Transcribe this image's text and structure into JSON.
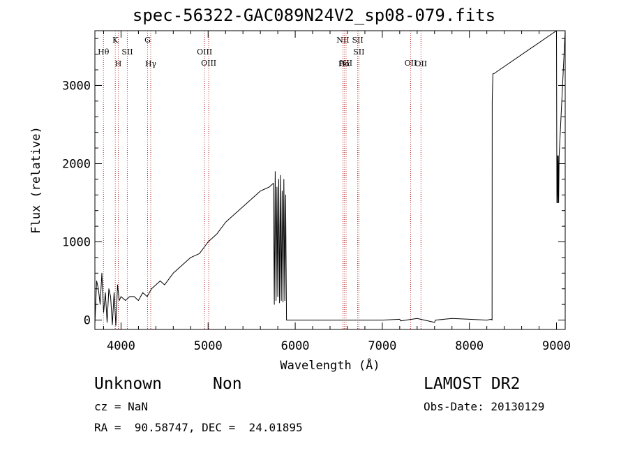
{
  "title": "spec-56322-GAC089N24V2_sp08-079.fits",
  "footer": {
    "class": "Unknown",
    "subclass": "Non",
    "survey": "LAMOST DR2",
    "cz": "cz = NaN",
    "obs_date": "Obs-Date: 20130129",
    "radec": "RA =  90.58747, DEC =  24.01895"
  },
  "chart_data": {
    "type": "line",
    "title": "spec-56322-GAC089N24V2_sp08-079.fits",
    "xlabel": "Wavelength (Å)",
    "ylabel": "Flux (relative)",
    "xlim": [
      3700,
      9100
    ],
    "ylim": [
      -120,
      3700
    ],
    "xticks": [
      4000,
      5000,
      6000,
      7000,
      8000,
      9000
    ],
    "yticks": [
      0,
      1000,
      2000,
      3000
    ],
    "grid": false,
    "line_color": "#000000",
    "marker_line_color": "#b22222",
    "series": [
      {
        "x": [
          3700,
          3720,
          3740,
          3760,
          3780,
          3800,
          3820,
          3840,
          3860,
          3880,
          3900,
          3920,
          3940,
          3960,
          3980,
          4000,
          4050,
          4100,
          4150,
          4200,
          4250,
          4300,
          4350,
          4400,
          4450,
          4500,
          4600,
          4700,
          4800,
          4900,
          5000,
          5100,
          5200,
          5300,
          5400,
          5500,
          5600,
          5700,
          5750,
          5760,
          5770,
          5780,
          5790,
          5800,
          5810,
          5820,
          5830,
          5840,
          5850,
          5860,
          5870,
          5880,
          5890,
          5900,
          6000,
          7000,
          7200,
          7210,
          7400,
          7600,
          7610,
          7800,
          8000,
          8200,
          8250,
          8260,
          8262,
          8270,
          8275,
          8280,
          9000,
          9005,
          9010,
          9015,
          9020,
          9025,
          9030,
          9100
        ],
        "y": [
          -50,
          500,
          400,
          200,
          600,
          100,
          350,
          -30,
          400,
          300,
          -60,
          350,
          -70,
          450,
          250,
          300,
          250,
          300,
          300,
          250,
          350,
          300,
          400,
          450,
          500,
          450,
          600,
          700,
          800,
          850,
          1000,
          1100,
          1250,
          1350,
          1450,
          1550,
          1650,
          1700,
          1750,
          200,
          1900,
          250,
          1700,
          300,
          1800,
          220,
          1850,
          250,
          1650,
          230,
          1800,
          250,
          1600,
          0,
          0,
          0,
          10,
          -10,
          20,
          -30,
          0,
          20,
          10,
          0,
          10,
          0,
          2800,
          3150,
          3150,
          3150,
          3700,
          1500,
          2100,
          1500,
          2100,
          1500,
          2100,
          3700
        ]
      }
    ],
    "line_markers": [
      {
        "label": "Hθ",
        "wavelength": 3798,
        "row": 2
      },
      {
        "label": "K",
        "wavelength": 3934,
        "row": 1
      },
      {
        "label": "H",
        "wavelength": 3969,
        "row": 3
      },
      {
        "label": "SII",
        "wavelength": 4072,
        "row": 2
      },
      {
        "label": "G",
        "wavelength": 4305,
        "row": 1
      },
      {
        "label": "Hγ",
        "wavelength": 4341,
        "row": 3
      },
      {
        "label": "OIII",
        "wavelength": 4959,
        "row": 2
      },
      {
        "label": "OIII",
        "wavelength": 5007,
        "row": 0
      },
      {
        "label": "NII",
        "wavelength": 6548,
        "row": 1
      },
      {
        "label": "Hα",
        "wavelength": 6563,
        "row": 3
      },
      {
        "label": "NII",
        "wavelength": 6584,
        "row": 0
      },
      {
        "label": "SII",
        "wavelength": 6717,
        "row": 1
      },
      {
        "label": "SII",
        "wavelength": 6731,
        "row": 2
      },
      {
        "label": "OII",
        "wavelength": 7325,
        "row": 0
      },
      {
        "label": "OII",
        "wavelength": 7444,
        "row": 3
      }
    ]
  }
}
